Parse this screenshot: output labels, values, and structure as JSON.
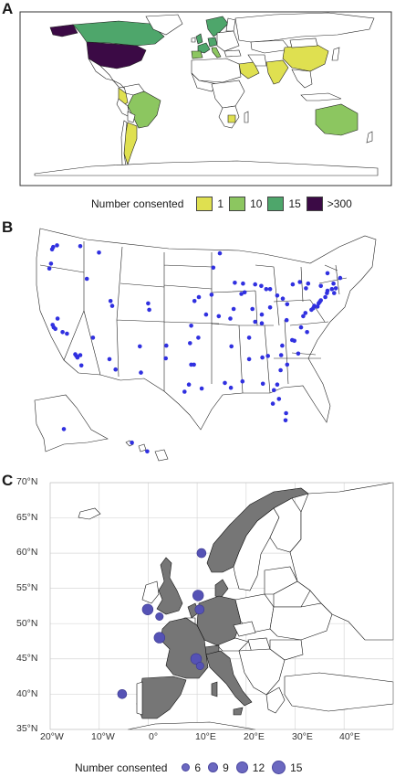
{
  "panels": {
    "a": "A",
    "b": "B",
    "c": "C"
  },
  "map_a": {
    "colors": {
      "1": "#dfe050",
      "10": "#8cc660",
      "15": "#4ea66b",
      "300": "#3b0a45",
      "none": "#ffffff"
    },
    "legend": {
      "title": "Number consented",
      "items": [
        {
          "label": "1",
          "color": "#dfe050"
        },
        {
          "label": "10",
          "color": "#8cc660"
        },
        {
          "label": "15",
          "color": "#4ea66b"
        },
        {
          "label": ">300",
          "color": "#3b0a45"
        }
      ]
    }
  },
  "map_b": {
    "point_color": "#3030e0",
    "points_lonlat": [
      [
        -122.3,
        47.6
      ],
      [
        -122.5,
        47.3
      ],
      [
        -121.6,
        47.8
      ],
      [
        -117.4,
        47.7
      ],
      [
        -114.0,
        46.9
      ],
      [
        -116.2,
        43.6
      ],
      [
        -111.9,
        40.8
      ],
      [
        -111.6,
        40.2
      ],
      [
        -122.7,
        45.5
      ],
      [
        -123.0,
        44.9
      ],
      [
        -122.4,
        37.8
      ],
      [
        -122.2,
        37.5
      ],
      [
        -121.9,
        37.3
      ],
      [
        -121.5,
        38.6
      ],
      [
        -120.6,
        36.9
      ],
      [
        -119.8,
        36.7
      ],
      [
        -118.3,
        34.1
      ],
      [
        -118.1,
        33.9
      ],
      [
        -117.9,
        33.7
      ],
      [
        -117.2,
        32.7
      ],
      [
        -117.4,
        34.0
      ],
      [
        -115.1,
        36.2
      ],
      [
        -112.1,
        33.5
      ],
      [
        -111.0,
        32.2
      ],
      [
        -104.9,
        39.7
      ],
      [
        -105.1,
        40.5
      ],
      [
        -106.6,
        35.1
      ],
      [
        -106.4,
        31.8
      ],
      [
        -97.5,
        35.5
      ],
      [
        -96.0,
        36.2
      ],
      [
        -97.3,
        37.7
      ],
      [
        -94.6,
        39.1
      ],
      [
        -95.9,
        41.3
      ],
      [
        -96.7,
        40.8
      ],
      [
        -93.6,
        41.6
      ],
      [
        -90.2,
        38.6
      ],
      [
        -92.3,
        38.9
      ],
      [
        -93.3,
        45.0
      ],
      [
        -92.1,
        46.8
      ],
      [
        -89.4,
        43.1
      ],
      [
        -87.9,
        43.0
      ],
      [
        -87.6,
        41.9
      ],
      [
        -88.2,
        41.7
      ],
      [
        -89.6,
        39.8
      ],
      [
        -86.2,
        39.8
      ],
      [
        -85.7,
        38.2
      ],
      [
        -84.5,
        38.0
      ],
      [
        -86.8,
        36.2
      ],
      [
        -90.0,
        35.1
      ],
      [
        -84.4,
        33.7
      ],
      [
        -83.4,
        33.9
      ],
      [
        -81.1,
        32.1
      ],
      [
        -86.8,
        33.5
      ],
      [
        -88.0,
        30.7
      ],
      [
        -90.1,
        29.9
      ],
      [
        -91.2,
        30.5
      ],
      [
        -95.4,
        29.8
      ],
      [
        -97.7,
        30.3
      ],
      [
        -98.5,
        29.4
      ],
      [
        -96.8,
        32.8
      ],
      [
        -97.3,
        32.8
      ],
      [
        -101.8,
        35.2
      ],
      [
        -101.9,
        33.6
      ],
      [
        -82.5,
        27.9
      ],
      [
        -81.4,
        28.5
      ],
      [
        -80.2,
        25.8
      ],
      [
        -80.1,
        26.7
      ],
      [
        -81.7,
        30.3
      ],
      [
        -84.3,
        30.4
      ],
      [
        -82.3,
        29.6
      ],
      [
        -80.8,
        35.2
      ],
      [
        -78.6,
        35.8
      ],
      [
        -79.0,
        35.9
      ],
      [
        -77.9,
        34.2
      ],
      [
        -79.9,
        32.8
      ],
      [
        -81.0,
        34.0
      ],
      [
        -77.4,
        37.5
      ],
      [
        -76.3,
        36.9
      ],
      [
        -77.0,
        38.9
      ],
      [
        -76.6,
        39.3
      ],
      [
        -75.2,
        39.9
      ],
      [
        -75.5,
        39.7
      ],
      [
        -74.0,
        40.7
      ],
      [
        -74.2,
        40.5
      ],
      [
        -73.8,
        40.9
      ],
      [
        -73.0,
        41.3
      ],
      [
        -72.7,
        41.8
      ],
      [
        -71.4,
        41.8
      ],
      [
        -71.1,
        42.4
      ],
      [
        -71.8,
        42.3
      ],
      [
        -72.6,
        42.1
      ],
      [
        -73.8,
        42.7
      ],
      [
        -76.1,
        43.0
      ],
      [
        -77.6,
        43.2
      ],
      [
        -78.9,
        42.9
      ],
      [
        -79.9,
        40.4
      ],
      [
        -80.7,
        41.1
      ],
      [
        -81.7,
        41.5
      ],
      [
        -83.0,
        40.0
      ],
      [
        -84.5,
        39.1
      ],
      [
        -83.0,
        42.3
      ],
      [
        -83.7,
        42.3
      ],
      [
        -85.7,
        42.9
      ],
      [
        -84.6,
        42.7
      ],
      [
        -80.0,
        38.4
      ],
      [
        -76.5,
        42.4
      ],
      [
        -70.3,
        43.7
      ],
      [
        -71.5,
        43.0
      ],
      [
        -72.6,
        44.3
      ],
      [
        -75.0,
        40.2
      ],
      [
        -74.4,
        40.1
      ],
      [
        -150.0,
        61.2
      ],
      [
        -157.9,
        21.3
      ],
      [
        -155.1,
        19.7
      ]
    ]
  },
  "map_c": {
    "x_ticks": [
      "20°W",
      "10°W",
      "0°",
      "10°E",
      "20°E",
      "30°E",
      "40°E"
    ],
    "y_ticks": [
      "70°N",
      "65°N",
      "60°N",
      "55°N",
      "50°N",
      "45°N",
      "40°N",
      "35°N"
    ],
    "shaded_color": "#767676",
    "point_color": "#5552b5",
    "points": [
      {
        "lon": -0.1,
        "lat": 52.0,
        "n": 12
      },
      {
        "lon": 2.3,
        "lat": 51.0,
        "n": 6
      },
      {
        "lon": 2.3,
        "lat": 48.0,
        "n": 12
      },
      {
        "lon": 10.2,
        "lat": 54.0,
        "n": 12
      },
      {
        "lon": 10.5,
        "lat": 52.0,
        "n": 9
      },
      {
        "lon": 10.9,
        "lat": 60.0,
        "n": 9
      },
      {
        "lon": 9.8,
        "lat": 45.0,
        "n": 12
      },
      {
        "lon": 10.6,
        "lat": 44.0,
        "n": 6
      },
      {
        "lon": -5.3,
        "lat": 40.0,
        "n": 9
      }
    ],
    "legend": {
      "title": "Number consented",
      "items": [
        {
          "label": "6",
          "n": 6
        },
        {
          "label": "9",
          "n": 9
        },
        {
          "label": "12",
          "n": 12
        },
        {
          "label": "15",
          "n": 15
        }
      ]
    }
  }
}
